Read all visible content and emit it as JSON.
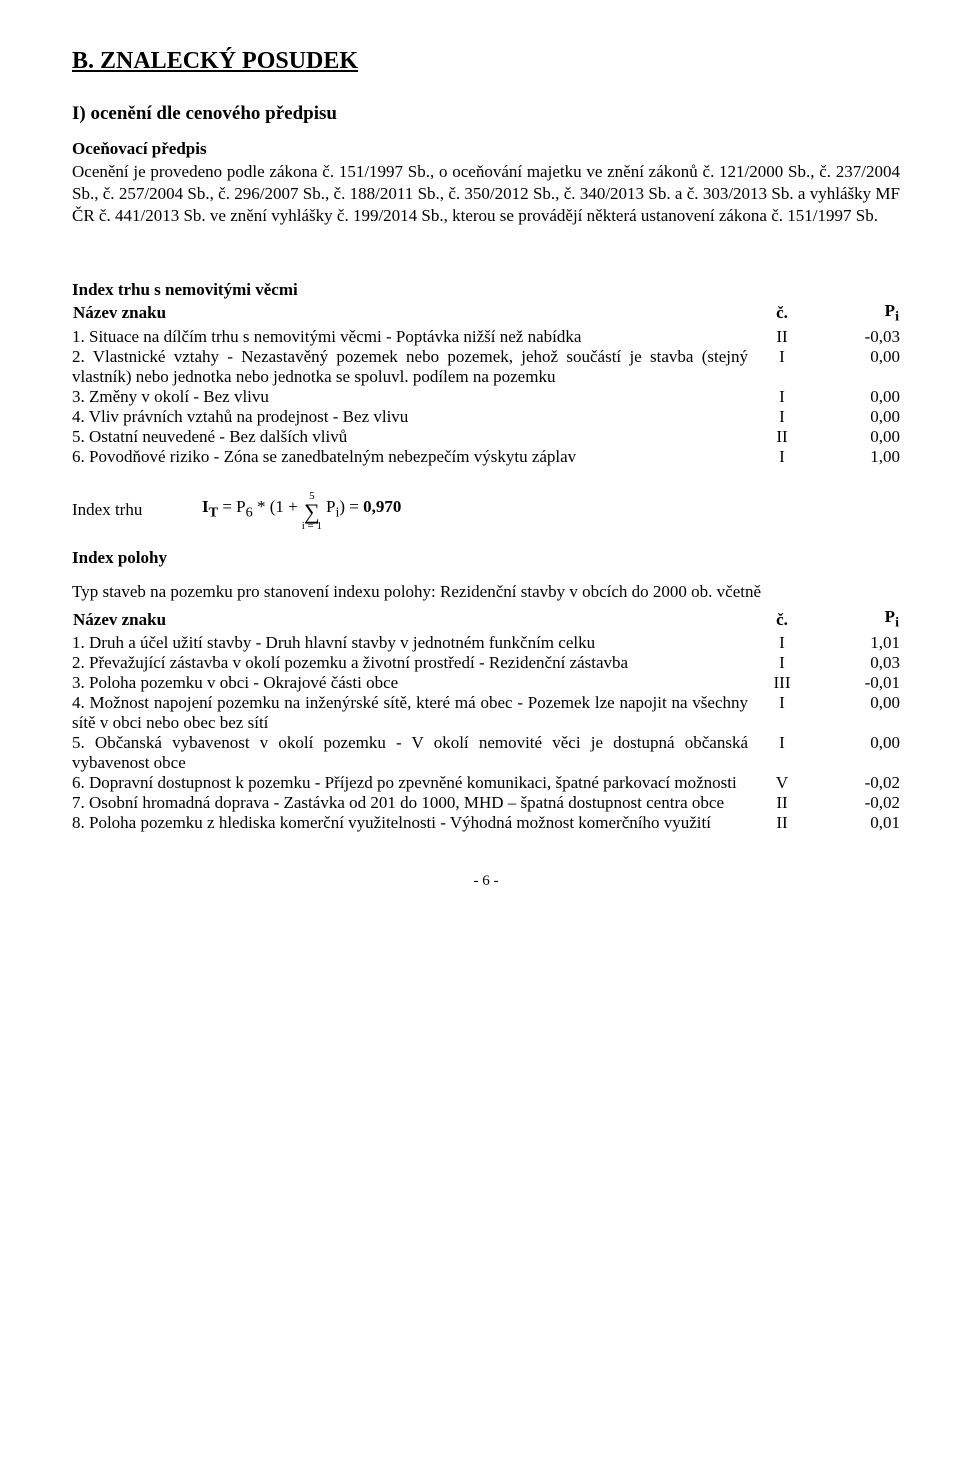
{
  "title_main": "B. ZNALECKÝ POSUDEK",
  "title_section_1": "I) ocenění dle cenového předpisu",
  "ocenov_predpis_heading": "Oceňovací předpis",
  "ocenov_predpis_text": "Ocenění je provedeno podle zákona č. 151/1997 Sb., o oceňování majetku ve znění zákonů č. 121/2000 Sb., č. 237/2004 Sb., č. 257/2004 Sb., č. 296/2007 Sb., č. 188/2011 Sb., č. 350/2012 Sb., č. 340/2013 Sb. a č. 303/2013 Sb. a vyhlášky MF ČR č. 441/2013 Sb. ve znění vyhlášky č. 199/2014 Sb., kterou se provádějí některá ustanovení zákona č. 151/1997 Sb.",
  "index_trhu_title": "Index trhu s nemovitými věcmi",
  "nazev_znaku": "Název znaku",
  "col_c": "č.",
  "col_p": "P",
  "col_p_sub": "i",
  "trhu_rows": [
    {
      "name": "1. Situace na dílčím trhu s nemovitými věcmi - Poptávka nižší než nabídka",
      "c": "II",
      "p": "-0,03"
    },
    {
      "name": "2. Vlastnické vztahy - Nezastavěný pozemek nebo pozemek, jehož součástí je stavba (stejný vlastník) nebo jednotka nebo jednotka se spoluvl. podílem na pozemku",
      "c": "I",
      "p": "0,00"
    },
    {
      "name": "3. Změny v okolí - Bez vlivu",
      "c": "I",
      "p": "0,00"
    },
    {
      "name": "4. Vliv právních vztahů na prodejnost - Bez vlivu",
      "c": "I",
      "p": "0,00"
    },
    {
      "name": "5. Ostatní neuvedené - Bez dalších vlivů",
      "c": "II",
      "p": "0,00"
    },
    {
      "name": "6. Povodňové riziko - Zóna se zanedbatelným nebezpečím výskytu záplav",
      "c": "I",
      "p": "1,00"
    }
  ],
  "formula_label": "Index trhu",
  "formula_lhs": "I",
  "formula_lhs_sub": "T",
  "formula_eq1": " = P",
  "formula_eq1_sub": "6",
  "formula_eq2": " * (1 + ",
  "sigma_top": "5",
  "sigma_bot": "i = 1",
  "formula_eq3": " P",
  "formula_eq3_sub": "i",
  "formula_eq4": ") = ",
  "formula_result": "0,970",
  "index_polohy_title": "Index polohy",
  "typ_staveb": "Typ staveb na pozemku pro stanovení indexu polohy: Rezidenční stavby v obcích do 2000 ob. včetně",
  "polohy_rows": [
    {
      "name": "1. Druh a účel užití stavby - Druh hlavní stavby v jednotném funkčním celku",
      "c": "I",
      "p": "1,01"
    },
    {
      "name": "2. Převažující zástavba v okolí pozemku a životní prostředí - Rezidenční zástavba",
      "c": "I",
      "p": "0,03"
    },
    {
      "name": "3. Poloha pozemku v obci - Okrajové části obce",
      "c": "III",
      "p": "-0,01"
    },
    {
      "name": "4. Možnost napojení pozemku na inženýrské sítě, které má obec - Pozemek lze napojit na všechny sítě v obci nebo obec bez sítí",
      "c": "I",
      "p": "0,00"
    },
    {
      "name": "5. Občanská vybavenost v okolí pozemku - V okolí nemovité věci je dostupná občanská vybavenost obce",
      "c": "I",
      "p": "0,00"
    },
    {
      "name": "6. Dopravní dostupnost k pozemku - Příjezd po zpevněné komunikaci, špatné parkovací možnosti",
      "c": "V",
      "p": "-0,02"
    },
    {
      "name": "7. Osobní hromadná doprava - Zastávka od 201 do 1000, MHD – špatná dostupnost centra obce",
      "c": "II",
      "p": "-0,02"
    },
    {
      "name": "8. Poloha pozemku z hlediska komerční využitelnosti - Výhodná možnost komerčního využití",
      "c": "II",
      "p": "0,01"
    }
  ],
  "page_number": "- 6 -"
}
